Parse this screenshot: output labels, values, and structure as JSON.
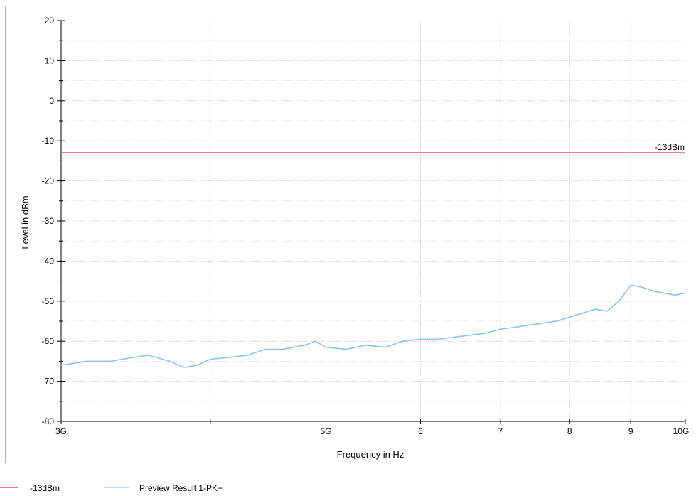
{
  "chart_data": {
    "type": "line",
    "xlabel": "Frequency in Hz",
    "ylabel": "Level in dBm",
    "xscale": "log",
    "xlim": [
      3000000000,
      10000000000
    ],
    "ylim": [
      -80,
      20
    ],
    "grid": true,
    "legend_position": "bottom-left",
    "y_ticks": [
      20,
      10,
      0,
      -10,
      -20,
      -30,
      -40,
      -50,
      -60,
      -70,
      -80
    ],
    "y_tick_labels": [
      "20",
      "10",
      "0",
      "-10",
      "-20",
      "-30",
      "-40",
      "-50",
      "-60",
      "-70",
      "-80"
    ],
    "x_labeled_ticks": [
      {
        "value": 3000000000,
        "label": "3G"
      },
      {
        "value": 5000000000,
        "label": "5G"
      },
      {
        "value": 6000000000,
        "label": "6"
      },
      {
        "value": 7000000000,
        "label": "7"
      },
      {
        "value": 8000000000,
        "label": "8"
      },
      {
        "value": 9000000000,
        "label": "9"
      },
      {
        "value": 10000000000,
        "label": "10G"
      }
    ],
    "x_unlabeled_ticks": [
      4000000000
    ],
    "limit_line": {
      "name": "-13dBm",
      "label": "-13dBm",
      "value": -13,
      "color": "#e8322d"
    },
    "series": [
      {
        "name": "Preview Result 1-PK+",
        "color": "#8cc4ee",
        "x": [
          3000000000,
          3150000000,
          3300000000,
          3450000000,
          3550000000,
          3700000000,
          3800000000,
          3900000000,
          4000000000,
          4150000000,
          4300000000,
          4450000000,
          4600000000,
          4700000000,
          4800000000,
          4900000000,
          5000000000,
          5200000000,
          5400000000,
          5600000000,
          5800000000,
          6000000000,
          6200000000,
          6400000000,
          6600000000,
          6800000000,
          7000000000,
          7200000000,
          7400000000,
          7600000000,
          7800000000,
          8000000000,
          8200000000,
          8400000000,
          8600000000,
          8800000000,
          9000000000,
          9200000000,
          9400000000,
          9600000000,
          9800000000,
          10000000000
        ],
        "values": [
          -66,
          -65,
          -65,
          -64,
          -63.5,
          -65,
          -66.5,
          -66,
          -64.5,
          -64,
          -63.5,
          -62,
          -62,
          -61.5,
          -61,
          -60,
          -61.5,
          -62,
          -61,
          -61.5,
          -60,
          -59.5,
          -59.5,
          -59,
          -58.5,
          -58,
          -57,
          -56.5,
          -56,
          -55.5,
          -55,
          -54,
          -53,
          -52,
          -52.5,
          -50,
          -46,
          -46.5,
          -47.5,
          -48,
          -48.5,
          -48
        ]
      }
    ]
  }
}
